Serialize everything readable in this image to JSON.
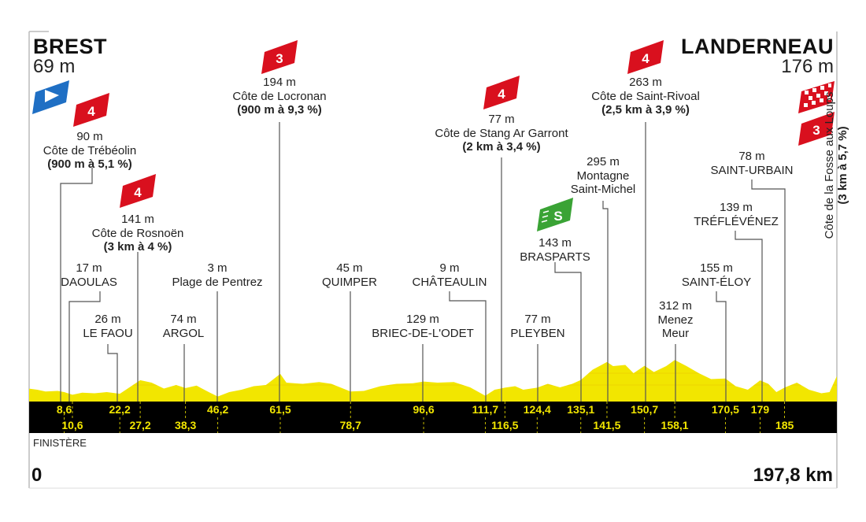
{
  "start": {
    "city": "BREST",
    "altitude": "69 m"
  },
  "finish": {
    "city": "LANDERNEAU",
    "altitude": "176 m"
  },
  "department": "FINISTÈRE",
  "distance_start": "0",
  "distance_end": "197,8 km",
  "colors": {
    "profile": "#f2e600",
    "band": "#000000",
    "climb_flag": "#d9101e",
    "sprint_flag": "#3aa335",
    "start_flag": "#1f6fc4"
  },
  "pois": {
    "trebeolin": {
      "cat": "4",
      "elev": "90 m",
      "name": "Côte de Trébéolin",
      "detail": "(900 m à 5,1 %)"
    },
    "rosnoen": {
      "cat": "4",
      "elev": "141 m",
      "name": "Côte de Rosnoën",
      "detail": "(3 km à 4 %)"
    },
    "locronan": {
      "cat": "3",
      "elev": "194 m",
      "name": "Côte de Locronan",
      "detail": "(900 m à 9,3 %)"
    },
    "stang": {
      "cat": "4",
      "elev": "77 m",
      "name": "Côte de Stang Ar Garront",
      "detail": "(2 km à 3,4 %)"
    },
    "rivoal": {
      "cat": "4",
      "elev": "263 m",
      "name": "Côte de Saint-Rivoal",
      "detail": "(2,5 km à 3,9 %)"
    },
    "fosse": {
      "cat": "3",
      "name": "Côte de la Fosse aux Loups",
      "detail": "(3 km à 5,7 %)"
    },
    "daoulas": {
      "elev": "17 m",
      "name": "DAOULAS"
    },
    "lefaou": {
      "elev": "26 m",
      "name": "LE FAOU"
    },
    "argol": {
      "elev": "74 m",
      "name": "ARGOL"
    },
    "pentrez": {
      "elev": "3 m",
      "name": "Plage de Pentrez"
    },
    "quimper": {
      "elev": "45 m",
      "name": "QUIMPER"
    },
    "briec": {
      "elev": "129 m",
      "name": "BRIEC-DE-L'ODET"
    },
    "chateaulin": {
      "elev": "9 m",
      "name": "CHÂTEAULIN"
    },
    "pleyben": {
      "elev": "77 m",
      "name": "PLEYBEN"
    },
    "brasparts": {
      "elev": "143 m",
      "name": "BRASPARTS",
      "sprint": "S"
    },
    "michel": {
      "elev": "295 m",
      "name1": "Montagne",
      "name2": "Saint-Michel"
    },
    "menez": {
      "elev": "312 m",
      "name1": "Menez",
      "name2": "Meur"
    },
    "eloy": {
      "elev": "155 m",
      "name": "SAINT-ÉLOY"
    },
    "treflevenez": {
      "elev": "139 m",
      "name": "TRÉFLÉVÉNEZ"
    },
    "urbain": {
      "elev": "78 m",
      "name": "SAINT-URBAIN"
    }
  },
  "chart_data": {
    "type": "area",
    "title": "BREST – LANDERNEAU",
    "xlabel": "km",
    "ylabel": "m",
    "xlim": [
      0,
      197.8
    ],
    "ylim": [
      0,
      312
    ],
    "km_marks_row1": [
      "8,6",
      "22,2",
      "46,2",
      "61,5",
      "96,6",
      "111,7",
      "124,4",
      "135,1",
      "150,7",
      "170,5",
      "179"
    ],
    "km_marks_row2": [
      "10,6",
      "27,2",
      "38,3",
      "78,7",
      "116,5",
      "141,5",
      "158,1",
      "185"
    ],
    "profile": [
      [
        0,
        69
      ],
      [
        2,
        60
      ],
      [
        4,
        45
      ],
      [
        7,
        50
      ],
      [
        8.6,
        40
      ],
      [
        10.6,
        17
      ],
      [
        13,
        35
      ],
      [
        16,
        30
      ],
      [
        19,
        40
      ],
      [
        22.2,
        26
      ],
      [
        25,
        90
      ],
      [
        27.2,
        141
      ],
      [
        30,
        120
      ],
      [
        33,
        70
      ],
      [
        36,
        100
      ],
      [
        38.3,
        74
      ],
      [
        41,
        95
      ],
      [
        44,
        40
      ],
      [
        46.2,
        3
      ],
      [
        49,
        40
      ],
      [
        52,
        60
      ],
      [
        55,
        90
      ],
      [
        58,
        100
      ],
      [
        61.5,
        194
      ],
      [
        63,
        120
      ],
      [
        67,
        110
      ],
      [
        71,
        125
      ],
      [
        74,
        110
      ],
      [
        78.7,
        45
      ],
      [
        82,
        50
      ],
      [
        86,
        90
      ],
      [
        90,
        110
      ],
      [
        94,
        115
      ],
      [
        96.6,
        129
      ],
      [
        100,
        120
      ],
      [
        104,
        125
      ],
      [
        108,
        80
      ],
      [
        111.7,
        9
      ],
      [
        114,
        60
      ],
      [
        116.5,
        77
      ],
      [
        119,
        90
      ],
      [
        121,
        60
      ],
      [
        124.4,
        77
      ],
      [
        127,
        110
      ],
      [
        130,
        80
      ],
      [
        133,
        110
      ],
      [
        135.1,
        143
      ],
      [
        138,
        230
      ],
      [
        141.5,
        295
      ],
      [
        143,
        260
      ],
      [
        146,
        270
      ],
      [
        148,
        200
      ],
      [
        150.7,
        263
      ],
      [
        153,
        210
      ],
      [
        156,
        260
      ],
      [
        158.1,
        312
      ],
      [
        161,
        260
      ],
      [
        164,
        200
      ],
      [
        167,
        150
      ],
      [
        170.5,
        155
      ],
      [
        173,
        90
      ],
      [
        176,
        60
      ],
      [
        179,
        139
      ],
      [
        181,
        110
      ],
      [
        183,
        40
      ],
      [
        185,
        78
      ],
      [
        188,
        120
      ],
      [
        191,
        60
      ],
      [
        194,
        30
      ],
      [
        196,
        40
      ],
      [
        197.8,
        176
      ]
    ]
  }
}
